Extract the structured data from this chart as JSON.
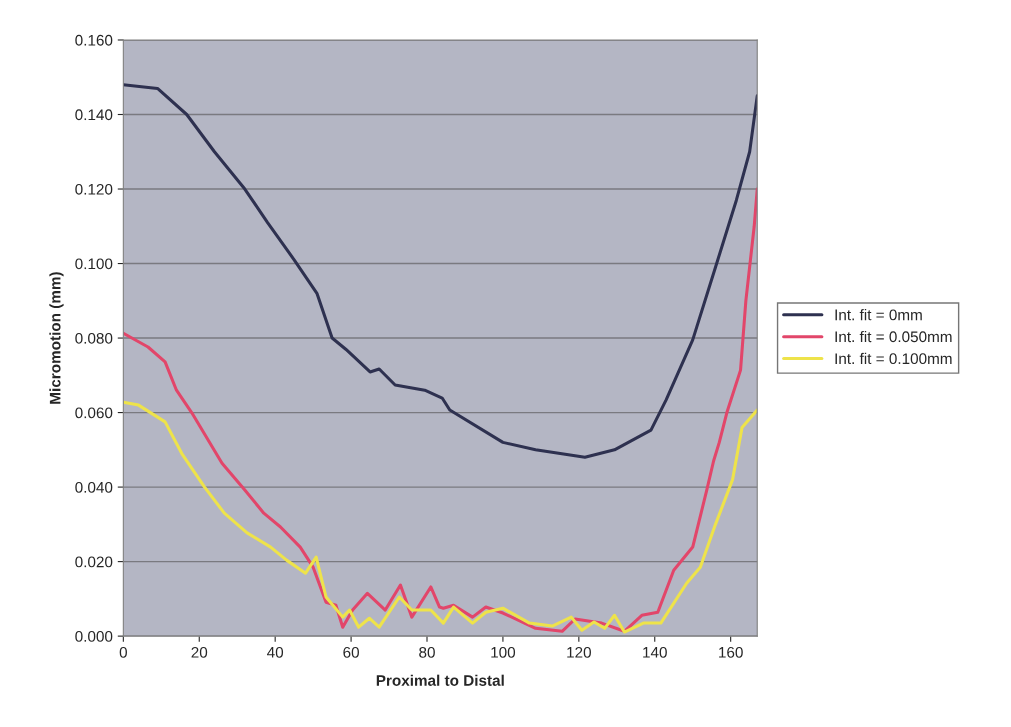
{
  "chart_data": {
    "type": "line",
    "xlabel": "Proximal to Distal",
    "ylabel": "Micromotion (mm)",
    "xlim": [
      0,
      167
    ],
    "xticks": [
      0,
      20,
      40,
      60,
      80,
      100,
      120,
      140,
      160
    ],
    "ylim": [
      0,
      0.16
    ],
    "yticks": [
      {
        "value": 0,
        "label": "0.000"
      },
      {
        "value": 0.02,
        "label": "0.020"
      },
      {
        "value": 0.04,
        "label": "0.040"
      },
      {
        "value": 0.06,
        "label": "0.060"
      },
      {
        "value": 0.08,
        "label": "0.080"
      },
      {
        "value": 0.1,
        "label": "0.100"
      },
      {
        "value": 0.12,
        "label": "0.120"
      },
      {
        "value": 0.14,
        "label": "0.140"
      },
      {
        "value": 0.16,
        "label": "0.160"
      }
    ],
    "grid": "y",
    "legend": "right",
    "marker": "none",
    "line_style": "solid",
    "series": [
      {
        "name": "Int. fit = 0mm",
        "color": "#2e3150",
        "x": [
          0,
          9,
          16.7,
          24,
          32,
          38,
          45,
          51,
          55,
          58.6,
          65,
          67.4,
          71.6,
          79.4,
          84,
          86,
          100,
          108.6,
          121.6,
          129.4,
          139,
          143,
          150,
          156,
          161.5,
          165,
          167
        ],
        "values": [
          0.148,
          0.147,
          0.14,
          0.13,
          0.12,
          0.111,
          0.101,
          0.092,
          0.08,
          0.077,
          0.0709,
          0.0717,
          0.0674,
          0.066,
          0.0639,
          0.0607,
          0.052,
          0.05,
          0.048,
          0.05,
          0.0553,
          0.0634,
          0.0795,
          0.099,
          0.117,
          0.13,
          0.145
        ]
      },
      {
        "name": "Int. fit = 0.050mm",
        "color": "#e2466a",
        "x": [
          0,
          6.5,
          11,
          14,
          18,
          26,
          32,
          37,
          41.4,
          46.6,
          50,
          53.4,
          56,
          57.8,
          60.4,
          64.3,
          69,
          73,
          76,
          81,
          83.3,
          84.3,
          87,
          92,
          95.5,
          100,
          108.6,
          115.6,
          119,
          126,
          132,
          136.6,
          140.8,
          145,
          150,
          153.7,
          155.5,
          157,
          159,
          162.6,
          164,
          166.2,
          167
        ],
        "values": [
          0.0813,
          0.0776,
          0.0736,
          0.066,
          0.06,
          0.0464,
          0.0392,
          0.033,
          0.0293,
          0.0239,
          0.0185,
          0.0091,
          0.0083,
          0.0024,
          0.007,
          0.0115,
          0.007,
          0.0137,
          0.0051,
          0.0132,
          0.0078,
          0.0075,
          0.0083,
          0.0051,
          0.0078,
          0.0062,
          0.0021,
          0.0013,
          0.0046,
          0.0035,
          0.0013,
          0.0056,
          0.0064,
          0.0177,
          0.0239,
          0.0392,
          0.047,
          0.052,
          0.06,
          0.0714,
          0.09,
          0.11,
          0.12
        ]
      },
      {
        "name": "Int. fit = 0.100mm",
        "color": "#eee34a",
        "x": [
          0,
          4,
          11,
          15.4,
          21.4,
          26.6,
          32.6,
          38.8,
          43,
          48,
          50.8,
          53.4,
          57.8,
          59.6,
          62,
          64.8,
          67.4,
          72.7,
          76,
          81,
          84.3,
          87,
          92,
          95.5,
          100,
          107,
          113,
          118,
          120.8,
          124,
          126.8,
          129.4,
          132,
          137,
          141.6,
          148.4,
          152,
          156,
          160.5,
          163,
          167
        ],
        "values": [
          0.0628,
          0.062,
          0.0575,
          0.049,
          0.04,
          0.033,
          0.0277,
          0.0239,
          0.0204,
          0.0169,
          0.0212,
          0.0105,
          0.0051,
          0.007,
          0.0024,
          0.0048,
          0.0024,
          0.0105,
          0.007,
          0.007,
          0.0035,
          0.0078,
          0.0035,
          0.0064,
          0.0075,
          0.0035,
          0.0027,
          0.0051,
          0.0016,
          0.0038,
          0.0021,
          0.0056,
          0.0011,
          0.0035,
          0.0035,
          0.0142,
          0.0185,
          0.03,
          0.042,
          0.056,
          0.0607
        ]
      }
    ]
  }
}
